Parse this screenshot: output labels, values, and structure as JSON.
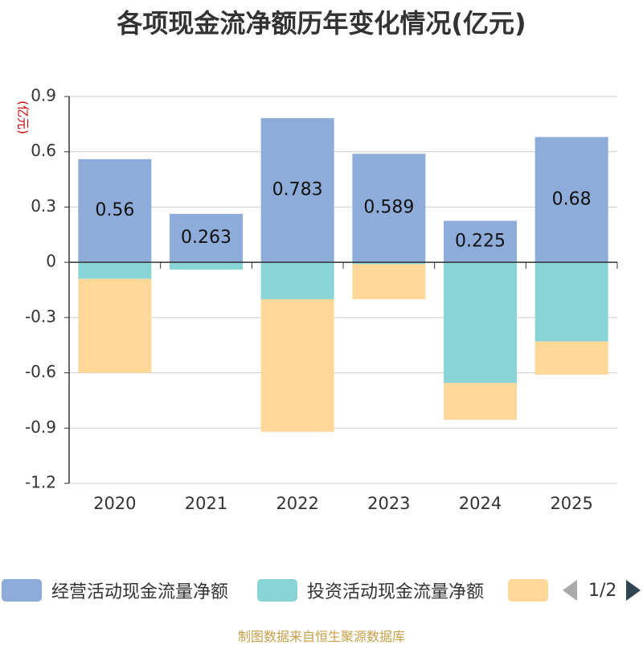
{
  "chart_data": {
    "type": "bar",
    "stacked": true,
    "title": "各项现金流净额历年变化情况(亿元)",
    "ylabel": "(亿元)",
    "xlabel": "",
    "categories": [
      "2020",
      "2021",
      "2022",
      "2023",
      "2024",
      "2025"
    ],
    "ylim": [
      -1.2,
      0.9
    ],
    "yticks": [
      0.9,
      0.6,
      0.3,
      0,
      -0.3,
      -0.6,
      -0.9,
      -1.2
    ],
    "ytick_labels": [
      "0.9",
      "0.6",
      "0.3",
      "0",
      "-0.3",
      "-0.6",
      "-0.9",
      "-1.2"
    ],
    "grid": true,
    "series": [
      {
        "name": "经营活动现金流量净额",
        "color": "#8eacd9",
        "values": [
          0.56,
          0.263,
          0.783,
          0.589,
          0.225,
          0.68
        ],
        "labels": [
          "0.56",
          "0.263",
          "0.783",
          "0.589",
          "0.225",
          "0.68"
        ]
      },
      {
        "name": "投资活动现金流量净额",
        "color": "#88d4d6",
        "values": [
          -0.09,
          -0.04,
          -0.2,
          -0.01,
          -0.655,
          -0.43
        ]
      },
      {
        "name": "",
        "color": "#fed899",
        "values": [
          -0.51,
          0.0,
          -0.72,
          -0.19,
          -0.2,
          -0.18
        ]
      }
    ]
  },
  "legend": {
    "items": [
      {
        "label": "经营活动现金流量净额",
        "color": "#8eacd9"
      },
      {
        "label": "投资活动现金流量净额",
        "color": "#88d4d6"
      },
      {
        "label": "",
        "color": "#fed899"
      }
    ],
    "page": "1/2"
  },
  "source": "制图数据来自恒生聚源数据库"
}
